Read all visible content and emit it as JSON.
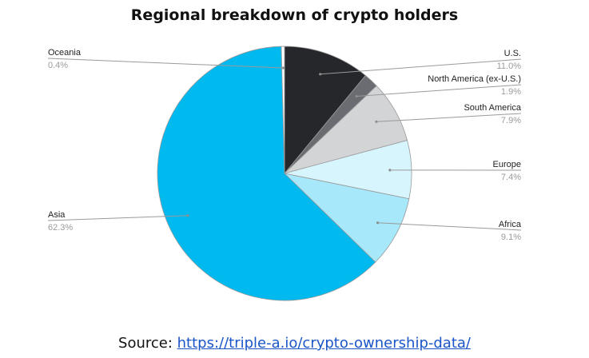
{
  "chart_data": {
    "type": "pie",
    "title": "Regional breakdown of crypto holders",
    "slices": [
      {
        "label": "U.S.",
        "value": 11.0,
        "value_label": "11.0%",
        "color": "#26272b"
      },
      {
        "label": "North America (ex-U.S.)",
        "value": 1.9,
        "value_label": "1.9%",
        "color": "#6b6c72"
      },
      {
        "label": "South America",
        "value": 7.9,
        "value_label": "7.9%",
        "color": "#d3d4d6"
      },
      {
        "label": "Europe",
        "value": 7.4,
        "value_label": "7.4%",
        "color": "#d6f5fd"
      },
      {
        "label": "Africa",
        "value": 9.1,
        "value_label": "9.1%",
        "color": "#a7e9fb"
      },
      {
        "label": "Asia",
        "value": 62.3,
        "value_label": "62.3%",
        "color": "#00b9ee"
      },
      {
        "label": "Oceania",
        "value": 0.4,
        "value_label": "0.4%",
        "color": "#ffffff"
      }
    ],
    "start_angle": "12 o'clock",
    "direction": "clockwise"
  },
  "footer": {
    "source_prefix": "Source: ",
    "source_link": "https://triple-a.io/crypto-ownership-data/"
  }
}
